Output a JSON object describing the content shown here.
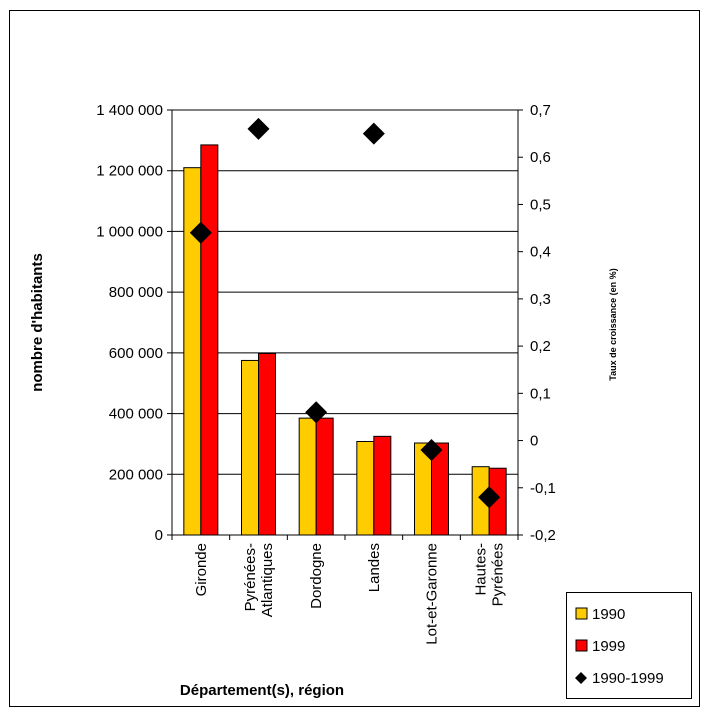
{
  "chart_data": {
    "type": "bar",
    "categories": [
      "Gironde",
      "Pyrénées-\nAtlantiques",
      "Dordogne",
      "Landes",
      "Lot-et-Garonne",
      "Hautes-\nPyrénées"
    ],
    "series": [
      {
        "name": "1990",
        "axis": "left",
        "kind": "bar",
        "color": "#FFCC00",
        "values": [
          1210000,
          575000,
          385000,
          308000,
          303000,
          225000
        ]
      },
      {
        "name": "1999",
        "axis": "left",
        "kind": "bar",
        "color": "#FF0000",
        "values": [
          1285000,
          598000,
          385000,
          325000,
          303000,
          220000
        ]
      },
      {
        "name": "1990-1999",
        "axis": "right",
        "kind": "scatter",
        "marker": "diamond",
        "color": "#000000",
        "values": [
          0.44,
          0.66,
          0.06,
          0.65,
          -0.02,
          -0.12
        ]
      }
    ],
    "xlabel": "Département(s), région",
    "ylabel": "nombre d'habitants",
    "y2label": "Taux de croissance (en %)",
    "ylim": [
      0,
      1400000
    ],
    "y2lim": [
      -0.2,
      0.7
    ],
    "yticks": [
      "0",
      "200 000",
      "400 000",
      "600 000",
      "800 000",
      "1 000 000",
      "1 200 000",
      "1 400 000"
    ],
    "y2ticks": [
      "-0,2",
      "-0,1",
      "0",
      "0,1",
      "0,2",
      "0,3",
      "0,4",
      "0,5",
      "0,6",
      "0,7"
    ],
    "grid": true,
    "legend": "bottom-right",
    "legend_entries": [
      "1990",
      "1999",
      "1990-1999"
    ]
  }
}
